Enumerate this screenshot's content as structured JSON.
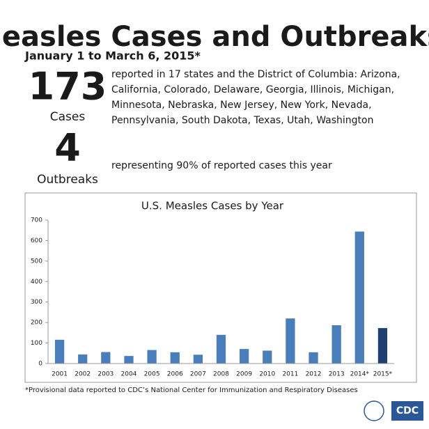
{
  "header": {
    "title": "Measles Cases and Outbreaks",
    "subtitle": "January 1 to March 6, 2015*"
  },
  "stats": [
    {
      "number": "173",
      "label": "Cases",
      "text": [
        "reported in 17 states and the District of Columbia: Arizona,",
        "California, Colorado, Delaware, Georgia, Illinois, Michigan,",
        "Minnesota, Nebraska, New Jersey, New York, Nevada,",
        "Pennsylvania, South Dakota, Texas, Utah, Washington"
      ]
    },
    {
      "number": "4",
      "label": "Outbreaks",
      "text": [
        "representing 90% of reported cases this year"
      ]
    }
  ],
  "chart_data": {
    "type": "bar",
    "title": "U.S. Measles Cases by Year",
    "categories": [
      "2001",
      "2002",
      "2003",
      "2004",
      "2005",
      "2006",
      "2007",
      "2008",
      "2009",
      "2010",
      "2011",
      "2012",
      "2013",
      "2014*",
      "2015*"
    ],
    "values": [
      116,
      44,
      56,
      37,
      66,
      55,
      43,
      140,
      71,
      63,
      220,
      55,
      187,
      644,
      173
    ],
    "colors": [
      "#4a7ebb",
      "#4a7ebb",
      "#4a7ebb",
      "#4a7ebb",
      "#4a7ebb",
      "#4a7ebb",
      "#4a7ebb",
      "#4a7ebb",
      "#4a7ebb",
      "#4a7ebb",
      "#4a7ebb",
      "#4a7ebb",
      "#4a7ebb",
      "#4a7ebb",
      "#1f3f70"
    ],
    "ylim": [
      0,
      700
    ],
    "yticks": [
      0,
      100,
      200,
      300,
      400,
      500,
      600,
      700
    ],
    "grid": false
  },
  "footnote": "*Provisional data reported to CDC’s National Center for Immunization and Respiratory Diseases",
  "logo": "CDC"
}
